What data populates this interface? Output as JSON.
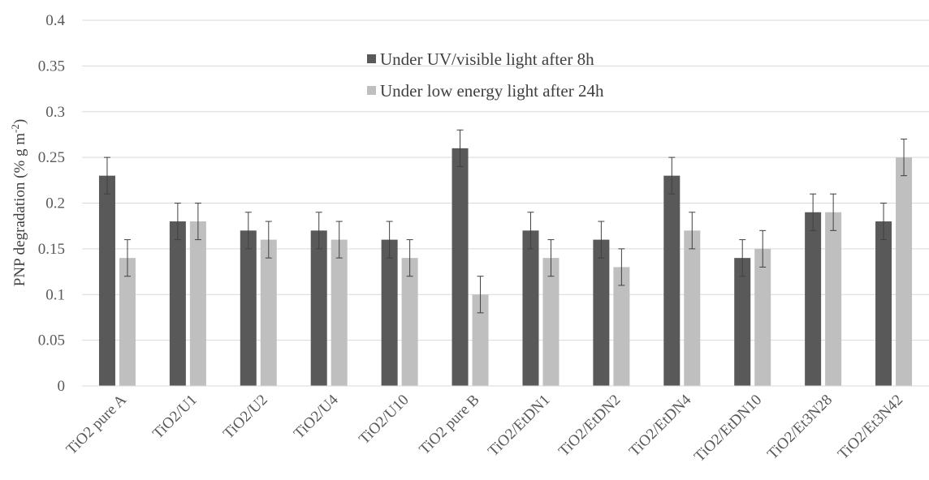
{
  "chart_data": {
    "type": "bar",
    "title": "",
    "xlabel": "",
    "ylabel": "PNP degradation (% g m",
    "ylabel_sup": "-2",
    "ylabel_close": ")",
    "ylim": [
      0,
      0.4
    ],
    "yticks": [
      "0",
      "0.05",
      "0.1",
      "0.15",
      "0.2",
      "0.25",
      "0.3",
      "0.35",
      "0.4"
    ],
    "grid": true,
    "legend_position": "top-center",
    "categories": [
      "TiO2 pure A",
      "TiO2/U1",
      "TiO2/U2",
      "TiO2/U4",
      "TiO2/U10",
      "TiO2 pure B",
      "TiO2/EtDN1",
      "TiO2/EtDN2",
      "TiO2/EtDN4",
      "TiO2/EtDN10",
      "TiO2/Et3N28",
      "TiO2/Et3N42"
    ],
    "series": [
      {
        "name": "Under UV/visible light after 8h",
        "color": "#595959",
        "values": [
          0.23,
          0.18,
          0.17,
          0.17,
          0.16,
          0.26,
          0.17,
          0.16,
          0.23,
          0.14,
          0.19,
          0.18
        ],
        "errors": [
          0.02,
          0.02,
          0.02,
          0.02,
          0.02,
          0.02,
          0.02,
          0.02,
          0.02,
          0.02,
          0.02,
          0.02
        ]
      },
      {
        "name": "Under low energy light after 24h",
        "color": "#bfbfbf",
        "values": [
          0.14,
          0.18,
          0.16,
          0.16,
          0.14,
          0.1,
          0.14,
          0.13,
          0.17,
          0.15,
          0.19,
          0.25
        ],
        "errors": [
          0.02,
          0.02,
          0.02,
          0.02,
          0.02,
          0.02,
          0.02,
          0.02,
          0.02,
          0.02,
          0.02,
          0.02
        ]
      }
    ]
  }
}
